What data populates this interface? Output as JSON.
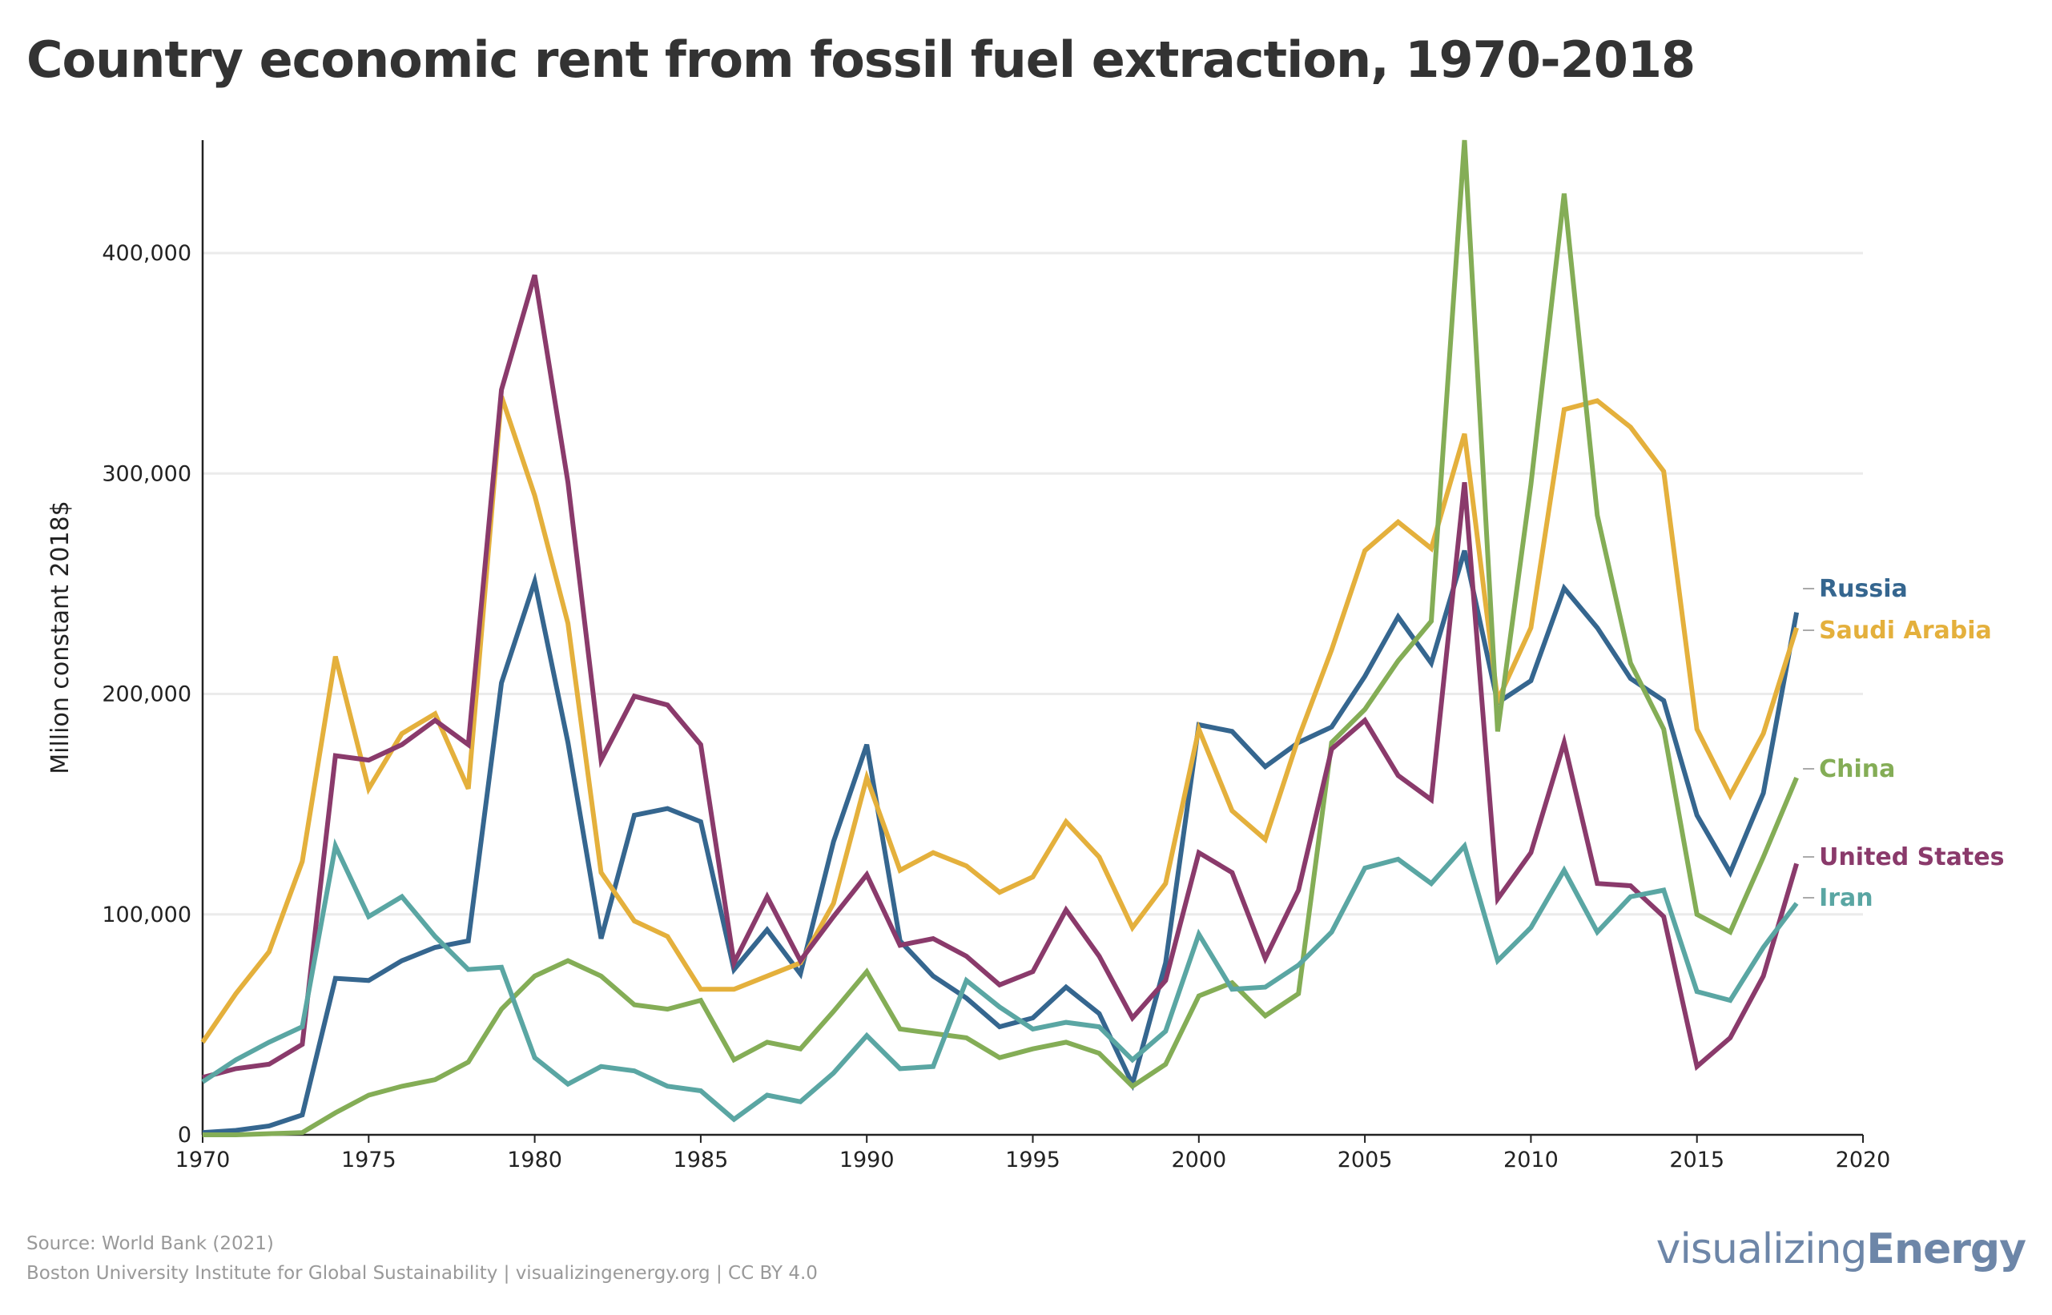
{
  "title": "Country economic rent from fossil fuel extraction, 1970-2018",
  "footer": {
    "source": "Source: World Bank (2021)",
    "credit": "Boston University Institute for Global Sustainability | visualizingenergy.org | CC BY 4.0",
    "logo_light": "visualizing",
    "logo_bold": "Energy"
  },
  "chart_data": {
    "type": "line",
    "title": "Country economic rent from fossil fuel extraction, 1970-2018",
    "xlabel": "",
    "ylabel": "Million constant 2018$",
    "xlim": [
      1970,
      2020
    ],
    "ylim": [
      0,
      450000
    ],
    "xticks": [
      1970,
      1975,
      1980,
      1985,
      1990,
      1995,
      2000,
      2005,
      2010,
      2015,
      2020
    ],
    "yticks": [
      0,
      100000,
      200000,
      300000,
      400000
    ],
    "ytick_labels": [
      "0",
      "100,000",
      "200,000",
      "300,000",
      "400,000"
    ],
    "grid": "horizontal",
    "legend": "right end labels",
    "x": [
      1970,
      1971,
      1972,
      1973,
      1974,
      1975,
      1976,
      1977,
      1978,
      1979,
      1980,
      1981,
      1982,
      1983,
      1984,
      1985,
      1986,
      1987,
      1988,
      1989,
      1990,
      1991,
      1992,
      1993,
      1994,
      1995,
      1996,
      1997,
      1998,
      1999,
      2000,
      2001,
      2002,
      2003,
      2004,
      2005,
      2006,
      2007,
      2008,
      2009,
      2010,
      2011,
      2012,
      2013,
      2014,
      2015,
      2016,
      2017,
      2018
    ],
    "series": [
      {
        "name": "Russia",
        "color": "#35668f",
        "values": [
          1000,
          2000,
          4000,
          9000,
          71000,
          70000,
          79000,
          85000,
          88000,
          205000,
          251000,
          178000,
          89000,
          145000,
          148000,
          142000,
          75000,
          93000,
          73000,
          133000,
          177000,
          88000,
          72000,
          62000,
          49000,
          53000,
          67000,
          55000,
          23000,
          78000,
          186000,
          183000,
          167000,
          178000,
          185000,
          208000,
          235000,
          214000,
          265000,
          196000,
          206000,
          248000,
          230000,
          207000,
          197000,
          145000,
          119000,
          155000,
          237000
        ]
      },
      {
        "name": "Saudi Arabia",
        "color": "#e4b03c",
        "values": [
          42000,
          64000,
          83000,
          124000,
          217000,
          157000,
          182000,
          191000,
          157000,
          335000,
          290000,
          232000,
          119000,
          97000,
          90000,
          66000,
          66000,
          72000,
          78000,
          105000,
          162000,
          120000,
          128000,
          122000,
          110000,
          117000,
          142000,
          126000,
          94000,
          114000,
          184000,
          147000,
          134000,
          180000,
          220000,
          265000,
          278000,
          266000,
          318000,
          197000,
          230000,
          329000,
          333000,
          321000,
          301000,
          184000,
          154000,
          182000,
          230000
        ]
      },
      {
        "name": "China",
        "color": "#84ad56",
        "values": [
          0,
          0,
          500,
          1000,
          10000,
          18000,
          22000,
          25000,
          33000,
          57000,
          72000,
          79000,
          72000,
          59000,
          57000,
          61000,
          34000,
          42000,
          39000,
          56000,
          74000,
          48000,
          46000,
          44000,
          35000,
          39000,
          42000,
          37000,
          22000,
          32000,
          63000,
          69000,
          54000,
          64000,
          178000,
          193000,
          215000,
          233000,
          452000,
          183000,
          295000,
          427000,
          281000,
          214000,
          184000,
          100000,
          92000,
          126000,
          162000
        ]
      },
      {
        "name": "United States",
        "color": "#8a3a6b",
        "values": [
          26000,
          30000,
          32000,
          41000,
          172000,
          170000,
          177000,
          188000,
          177000,
          338000,
          390000,
          296000,
          170000,
          199000,
          195000,
          177000,
          78000,
          108000,
          79000,
          99000,
          118000,
          86000,
          89000,
          81000,
          68000,
          74000,
          102000,
          81000,
          53000,
          70000,
          128000,
          119000,
          80000,
          111000,
          175000,
          188000,
          163000,
          152000,
          296000,
          107000,
          128000,
          178000,
          114000,
          113000,
          99000,
          31000,
          44000,
          72000,
          123000
        ]
      },
      {
        "name": "Iran",
        "color": "#5aa6a3",
        "values": [
          24000,
          34000,
          42000,
          49000,
          131000,
          99000,
          108000,
          90000,
          75000,
          76000,
          35000,
          23000,
          31000,
          29000,
          22000,
          20000,
          7000,
          18000,
          15000,
          28000,
          45000,
          30000,
          31000,
          70000,
          58000,
          48000,
          51000,
          49000,
          34000,
          47000,
          91000,
          66000,
          67000,
          77000,
          92000,
          121000,
          125000,
          114000,
          131000,
          79000,
          94000,
          120000,
          92000,
          108000,
          111000,
          65000,
          61000,
          85000,
          105000
        ]
      }
    ]
  }
}
